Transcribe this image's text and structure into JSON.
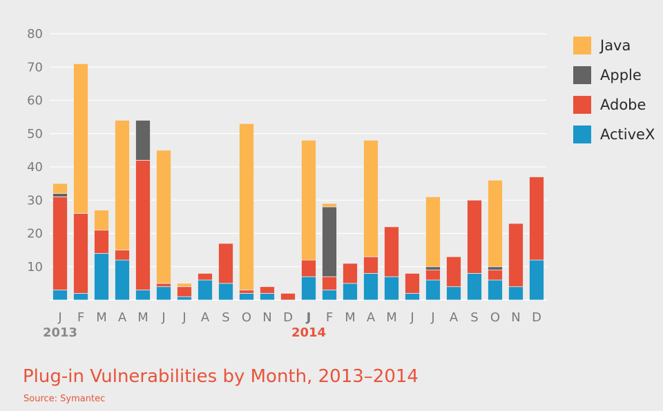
{
  "chart_data": {
    "type": "bar",
    "stacked": true,
    "title": "Plug-in Vulnerabilities by Month, 2013–2014",
    "source": "Source: Symantec",
    "categories": [
      "J",
      "F",
      "M",
      "A",
      "M",
      "J",
      "J",
      "A",
      "S",
      "O",
      "N",
      "D",
      "J",
      "F",
      "M",
      "A",
      "M",
      "J",
      "J",
      "A",
      "S",
      "O",
      "N",
      "D"
    ],
    "year_labels": [
      {
        "index": 0,
        "label": "2013",
        "color": "#8a8a8a"
      },
      {
        "index": 12,
        "label": "2014",
        "color": "#e8533a"
      }
    ],
    "highlight_category_index": 12,
    "y_ticks": [
      10,
      20,
      30,
      40,
      50,
      60,
      70,
      80
    ],
    "ylim": [
      0,
      80
    ],
    "legend_position": "right",
    "series": [
      {
        "name": "ActiveX",
        "color": "#1a96c8",
        "values": [
          3,
          2,
          14,
          12,
          3,
          4,
          1,
          6,
          5,
          2,
          2,
          0,
          7,
          3,
          5,
          8,
          7,
          2,
          6,
          4,
          8,
          6,
          4,
          12
        ]
      },
      {
        "name": "Adobe",
        "color": "#e8503a",
        "values": [
          28,
          24,
          7,
          3,
          39,
          1,
          3,
          2,
          12,
          1,
          2,
          2,
          5,
          4,
          6,
          5,
          15,
          6,
          3,
          9,
          22,
          3,
          19,
          25
        ]
      },
      {
        "name": "Apple",
        "color": "#636363",
        "values": [
          1,
          0,
          0,
          0,
          12,
          0,
          0,
          0,
          0,
          0,
          0,
          0,
          0,
          21,
          0,
          0,
          0,
          0,
          1,
          0,
          0,
          1,
          0,
          0
        ]
      },
      {
        "name": "Java",
        "color": "#fdb54f",
        "values": [
          3,
          45,
          6,
          39,
          0,
          40,
          1,
          0,
          0,
          50,
          0,
          0,
          36,
          1,
          0,
          35,
          0,
          0,
          21,
          0,
          0,
          26,
          0,
          0
        ]
      }
    ],
    "legend_order": [
      "Java",
      "Apple",
      "Adobe",
      "ActiveX"
    ]
  }
}
